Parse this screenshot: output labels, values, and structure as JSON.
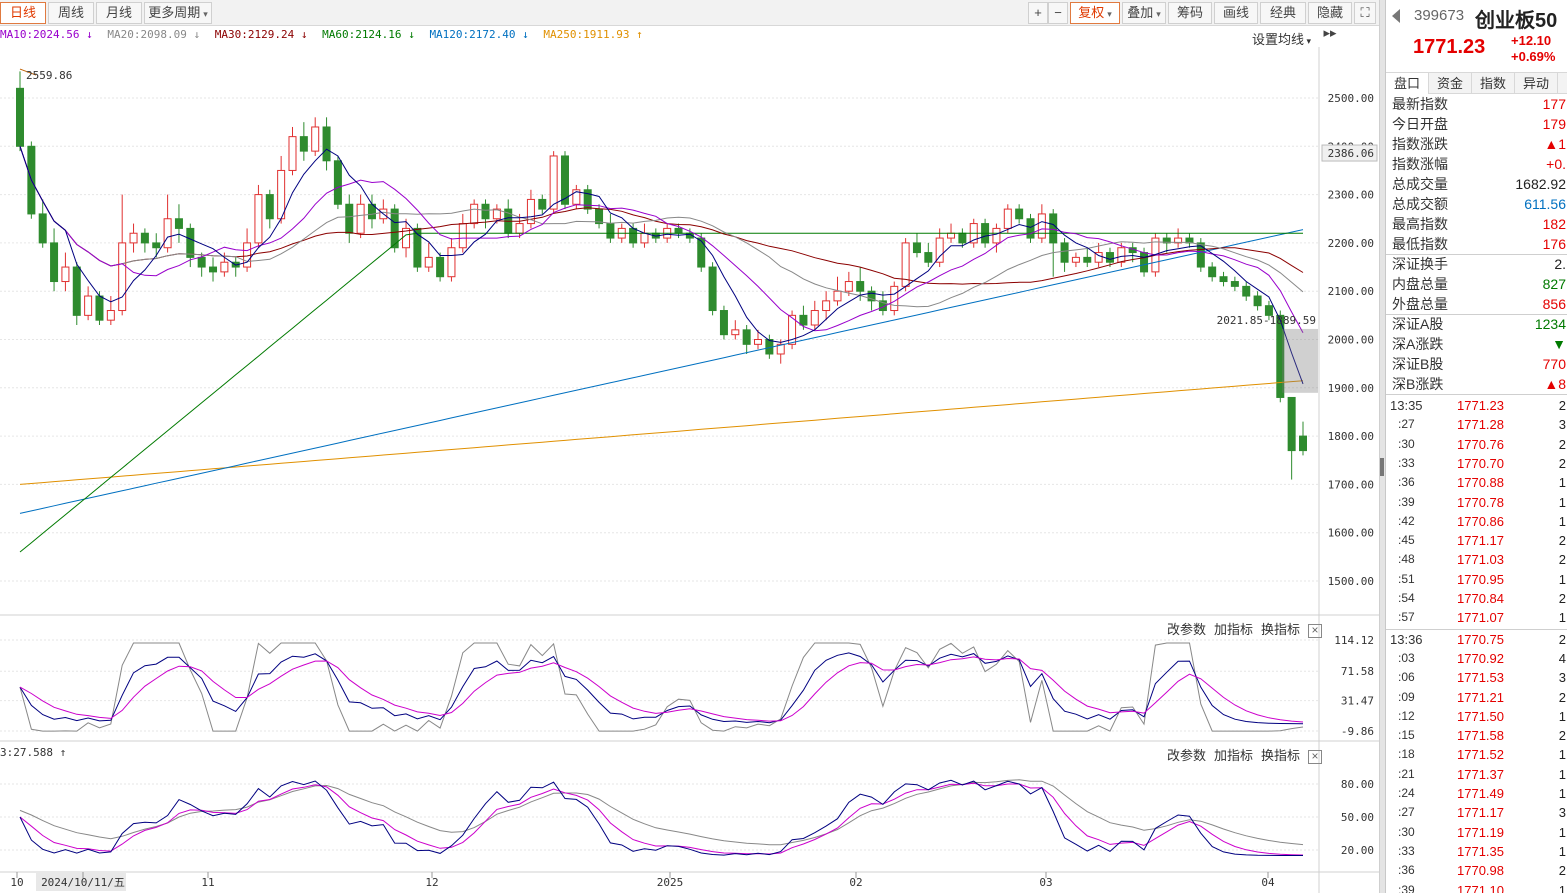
{
  "toolbar": {
    "periods": [
      "日线",
      "周线",
      "月线",
      "更多周期"
    ],
    "right_buttons": [
      "+",
      "−",
      "复权",
      "叠加",
      "筹码",
      "画线",
      "经典",
      "隐藏 ▸▸"
    ]
  },
  "ma_legend": [
    {
      "label": "MA10:2024.56",
      "arrow": "↓",
      "color": "#9900cc"
    },
    {
      "label": "MA20:2098.09",
      "arrow": "↓",
      "color": "#888888"
    },
    {
      "label": "MA30:2129.24",
      "arrow": "↓",
      "color": "#8b0000"
    },
    {
      "label": "MA60:2124.16",
      "arrow": "↓",
      "color": "#007a00"
    },
    {
      "label": "MA120:2172.40",
      "arrow": "↓",
      "color": "#0070c0"
    },
    {
      "label": "MA250:1911.93",
      "arrow": "↑",
      "color": "#e09000"
    }
  ],
  "set_ma_label": "设置均线",
  "indicator_controls": [
    "改参数",
    "加指标",
    "换指标"
  ],
  "indicator2_label": "3:27.588 ↑",
  "chart_data": {
    "type": "candlestick",
    "main": {
      "y_ticks": [
        2500.0,
        2400.0,
        2300.0,
        2200.0,
        2100.0,
        2000.0,
        1900.0,
        1800.0,
        1700.0,
        1600.0,
        1500.0
      ],
      "ylim": [
        1400,
        2600
      ],
      "crosshair_value": "2386.06",
      "annotations": {
        "high": "2559.86",
        "range_label": "2021.85-1889.59"
      },
      "candles": [
        [
          2520,
          2400,
          2555,
          2390
        ],
        [
          2400,
          2260,
          2410,
          2250
        ],
        [
          2260,
          2200,
          2290,
          2190
        ],
        [
          2200,
          2120,
          2230,
          2100
        ],
        [
          2120,
          2150,
          2180,
          2100
        ],
        [
          2150,
          2050,
          2160,
          2030
        ],
        [
          2050,
          2090,
          2110,
          2040
        ],
        [
          2090,
          2040,
          2100,
          2030
        ],
        [
          2040,
          2060,
          2090,
          2030
        ],
        [
          2060,
          2200,
          2300,
          2050
        ],
        [
          2200,
          2220,
          2240,
          2180
        ],
        [
          2220,
          2200,
          2230,
          2180
        ],
        [
          2200,
          2190,
          2220,
          2170
        ],
        [
          2190,
          2250,
          2300,
          2180
        ],
        [
          2250,
          2230,
          2280,
          2200
        ],
        [
          2230,
          2170,
          2240,
          2150
        ],
        [
          2170,
          2150,
          2180,
          2130
        ],
        [
          2150,
          2140,
          2170,
          2120
        ],
        [
          2140,
          2160,
          2180,
          2130
        ],
        [
          2160,
          2150,
          2170,
          2130
        ],
        [
          2150,
          2200,
          2230,
          2140
        ],
        [
          2200,
          2300,
          2320,
          2190
        ],
        [
          2300,
          2250,
          2310,
          2230
        ],
        [
          2250,
          2350,
          2380,
          2240
        ],
        [
          2350,
          2420,
          2440,
          2340
        ],
        [
          2420,
          2390,
          2450,
          2370
        ],
        [
          2390,
          2440,
          2460,
          2380
        ],
        [
          2440,
          2370,
          2460,
          2350
        ],
        [
          2370,
          2280,
          2380,
          2270
        ],
        [
          2280,
          2220,
          2300,
          2200
        ],
        [
          2220,
          2280,
          2300,
          2210
        ],
        [
          2280,
          2250,
          2300,
          2230
        ],
        [
          2250,
          2270,
          2290,
          2240
        ],
        [
          2270,
          2190,
          2280,
          2180
        ],
        [
          2190,
          2230,
          2250,
          2170
        ],
        [
          2230,
          2150,
          2240,
          2140
        ],
        [
          2150,
          2170,
          2200,
          2140
        ],
        [
          2170,
          2130,
          2180,
          2120
        ],
        [
          2130,
          2190,
          2210,
          2120
        ],
        [
          2190,
          2240,
          2260,
          2180
        ],
        [
          2240,
          2280,
          2290,
          2230
        ],
        [
          2280,
          2250,
          2290,
          2230
        ],
        [
          2250,
          2270,
          2280,
          2240
        ],
        [
          2270,
          2220,
          2290,
          2210
        ],
        [
          2220,
          2240,
          2260,
          2210
        ],
        [
          2240,
          2290,
          2310,
          2230
        ],
        [
          2290,
          2270,
          2300,
          2260
        ],
        [
          2270,
          2380,
          2390,
          2260
        ],
        [
          2380,
          2280,
          2390,
          2270
        ],
        [
          2280,
          2310,
          2320,
          2270
        ],
        [
          2310,
          2270,
          2320,
          2260
        ],
        [
          2270,
          2240,
          2280,
          2230
        ],
        [
          2240,
          2210,
          2260,
          2200
        ],
        [
          2210,
          2230,
          2240,
          2200
        ],
        [
          2230,
          2200,
          2240,
          2190
        ],
        [
          2200,
          2220,
          2240,
          2190
        ],
        [
          2220,
          2210,
          2230,
          2200
        ],
        [
          2210,
          2230,
          2240,
          2200
        ],
        [
          2230,
          2220,
          2240,
          2210
        ],
        [
          2220,
          2210,
          2230,
          2200
        ],
        [
          2210,
          2150,
          2220,
          2140
        ],
        [
          2150,
          2060,
          2160,
          2050
        ],
        [
          2060,
          2010,
          2070,
          2000
        ],
        [
          2010,
          2020,
          2040,
          2000
        ],
        [
          2020,
          1990,
          2030,
          1970
        ],
        [
          1990,
          2000,
          2020,
          1980
        ],
        [
          2000,
          1970,
          2010,
          1960
        ],
        [
          1970,
          1990,
          2000,
          1950
        ],
        [
          1990,
          2050,
          2060,
          1980
        ],
        [
          2050,
          2030,
          2070,
          2020
        ],
        [
          2030,
          2060,
          2080,
          2020
        ],
        [
          2060,
          2080,
          2100,
          2040
        ],
        [
          2080,
          2100,
          2130,
          2070
        ],
        [
          2100,
          2120,
          2140,
          2090
        ],
        [
          2120,
          2100,
          2150,
          2080
        ],
        [
          2100,
          2080,
          2110,
          2060
        ],
        [
          2080,
          2060,
          2100,
          2050
        ],
        [
          2060,
          2110,
          2120,
          2050
        ],
        [
          2110,
          2200,
          2210,
          2100
        ],
        [
          2200,
          2180,
          2220,
          2170
        ],
        [
          2180,
          2160,
          2200,
          2150
        ],
        [
          2160,
          2210,
          2230,
          2150
        ],
        [
          2210,
          2220,
          2240,
          2200
        ],
        [
          2220,
          2200,
          2230,
          2190
        ],
        [
          2200,
          2240,
          2250,
          2190
        ],
        [
          2240,
          2200,
          2250,
          2190
        ],
        [
          2200,
          2230,
          2240,
          2180
        ],
        [
          2230,
          2270,
          2280,
          2220
        ],
        [
          2270,
          2250,
          2280,
          2240
        ],
        [
          2250,
          2210,
          2260,
          2200
        ],
        [
          2210,
          2260,
          2280,
          2200
        ],
        [
          2260,
          2200,
          2270,
          2130
        ],
        [
          2200,
          2160,
          2210,
          2140
        ],
        [
          2160,
          2170,
          2180,
          2150
        ],
        [
          2170,
          2160,
          2190,
          2150
        ],
        [
          2160,
          2180,
          2200,
          2150
        ],
        [
          2180,
          2160,
          2190,
          2150
        ],
        [
          2160,
          2190,
          2200,
          2150
        ],
        [
          2190,
          2180,
          2200,
          2160
        ],
        [
          2180,
          2140,
          2190,
          2130
        ],
        [
          2140,
          2210,
          2220,
          2130
        ],
        [
          2210,
          2200,
          2220,
          2180
        ],
        [
          2200,
          2210,
          2230,
          2190
        ],
        [
          2210,
          2200,
          2220,
          2190
        ],
        [
          2200,
          2150,
          2210,
          2140
        ],
        [
          2150,
          2130,
          2160,
          2120
        ],
        [
          2130,
          2120,
          2140,
          2110
        ],
        [
          2120,
          2110,
          2130,
          2100
        ],
        [
          2110,
          2090,
          2120,
          2080
        ],
        [
          2090,
          2070,
          2100,
          2060
        ],
        [
          2070,
          2050,
          2080,
          2040
        ],
        [
          2050,
          1880,
          2060,
          1870
        ],
        [
          1880,
          1770,
          1880,
          1710
        ],
        [
          1800,
          1770,
          1830,
          1760
        ]
      ],
      "ma_colors": {
        "ma10": "#9900cc",
        "ma20": "#888888",
        "ma30": "#8b0000",
        "ma60": "#007a00",
        "ma120": "#0070c0",
        "ma250": "#e09000",
        "ma5": "#000080"
      }
    },
    "osc1": {
      "y_ticks": [
        "114.12",
        "71.58",
        "31.47",
        "-9.86"
      ]
    },
    "osc2": {
      "y_ticks": [
        "80.00",
        "50.00",
        "20.00"
      ]
    },
    "x_labels": [
      "10",
      "2024/10/11/五",
      "11",
      "12",
      "2025",
      "02",
      "03",
      "04"
    ]
  },
  "right_panel": {
    "code": "399673",
    "name": "创业板50",
    "price": "1771.23",
    "change": "+12.10",
    "change_pct": "+0.69%",
    "tabs": [
      "盘口",
      "资金",
      "指数",
      "异动"
    ],
    "stats": [
      {
        "k": "最新指数",
        "v": "177",
        "c": "#e40000"
      },
      {
        "k": "今日开盘",
        "v": "179",
        "c": "#e40000"
      },
      {
        "k": "指数涨跌",
        "v": "▲1",
        "c": "#e40000"
      },
      {
        "k": "指数涨幅",
        "v": "+0.",
        "c": "#e40000"
      },
      {
        "k": "总成交量",
        "v": "1682.92",
        "c": "#222222"
      },
      {
        "k": "总成交额",
        "v": "611.56",
        "c": "#0070c0"
      },
      {
        "k": "最高指数",
        "v": "182",
        "c": "#e40000"
      },
      {
        "k": "最低指数",
        "v": "176",
        "c": "#e40000"
      }
    ],
    "stats2": [
      {
        "k": "深证换手",
        "v": "2.",
        "c": "#222222"
      },
      {
        "k": "内盘总量",
        "v": "827",
        "c": "#007a00"
      },
      {
        "k": "外盘总量",
        "v": "856",
        "c": "#e40000"
      }
    ],
    "stats3": [
      {
        "k": "深证A股",
        "v": "1234",
        "c": "#007a00"
      },
      {
        "k": "深A涨跌",
        "v": "▼",
        "c": "#007a00"
      },
      {
        "k": "深证B股",
        "v": "770",
        "c": "#e40000"
      },
      {
        "k": "深B涨跌",
        "v": "▲8",
        "c": "#e40000"
      }
    ],
    "ticks": [
      {
        "t": "13:35",
        "p": "1771.23",
        "v": "2"
      },
      {
        "t": ":27",
        "p": "1771.28",
        "v": "3"
      },
      {
        "t": ":30",
        "p": "1770.76",
        "v": "2"
      },
      {
        "t": ":33",
        "p": "1770.70",
        "v": "2"
      },
      {
        "t": ":36",
        "p": "1770.88",
        "v": "1"
      },
      {
        "t": ":39",
        "p": "1770.78",
        "v": "1"
      },
      {
        "t": ":42",
        "p": "1770.86",
        "v": "1"
      },
      {
        "t": ":45",
        "p": "1771.17",
        "v": "2"
      },
      {
        "t": ":48",
        "p": "1771.03",
        "v": "2"
      },
      {
        "t": ":51",
        "p": "1770.95",
        "v": "1"
      },
      {
        "t": ":54",
        "p": "1770.84",
        "v": "2"
      },
      {
        "t": ":57",
        "p": "1771.07",
        "v": "1"
      }
    ],
    "ticks2": [
      {
        "t": "13:36",
        "p": "1770.75",
        "v": "2"
      },
      {
        "t": ":03",
        "p": "1770.92",
        "v": "4"
      },
      {
        "t": ":06",
        "p": "1771.53",
        "v": "3"
      },
      {
        "t": ":09",
        "p": "1771.21",
        "v": "2"
      },
      {
        "t": ":12",
        "p": "1771.50",
        "v": "1"
      },
      {
        "t": ":15",
        "p": "1771.58",
        "v": "2"
      },
      {
        "t": ":18",
        "p": "1771.52",
        "v": "1"
      },
      {
        "t": ":21",
        "p": "1771.37",
        "v": "1"
      },
      {
        "t": ":24",
        "p": "1771.49",
        "v": "1"
      },
      {
        "t": ":27",
        "p": "1771.17",
        "v": "3"
      },
      {
        "t": ":30",
        "p": "1771.19",
        "v": "1"
      },
      {
        "t": ":33",
        "p": "1771.35",
        "v": "1"
      },
      {
        "t": ":36",
        "p": "1770.98",
        "v": "2"
      },
      {
        "t": ":39",
        "p": "1771.10",
        "v": "1"
      }
    ]
  }
}
